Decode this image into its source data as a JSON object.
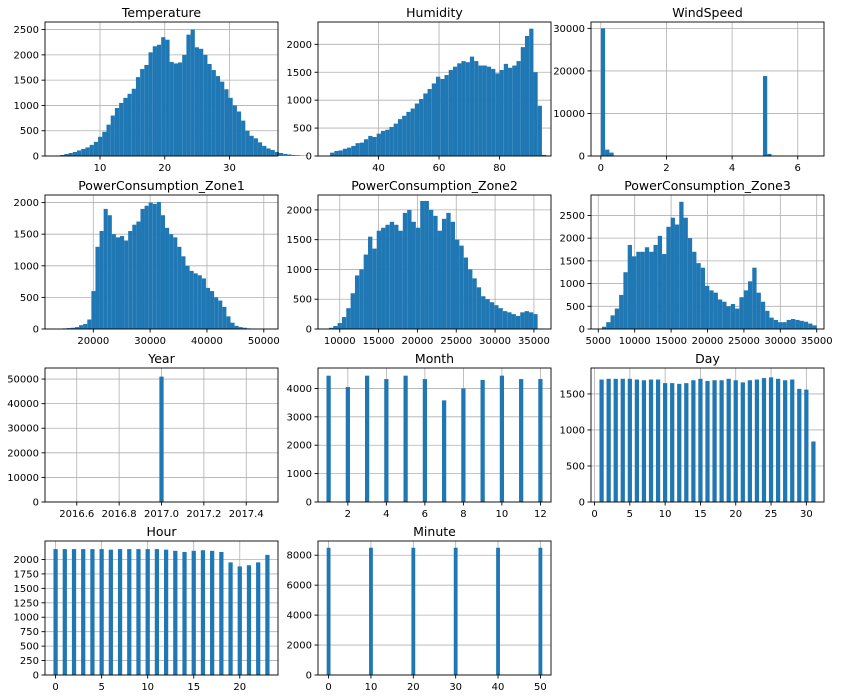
{
  "figure": {
    "background": "#ffffff",
    "bar_color": "#1f77b4",
    "grid_color": "#b0b0b0"
  },
  "chart_data": [
    {
      "type": "bar",
      "title": "Temperature",
      "xlim": [
        1.5,
        37.5
      ],
      "ylim": [
        0,
        2650
      ],
      "xticks": [
        {
          "v": 10,
          "label": "10"
        },
        {
          "v": 20,
          "label": "20"
        },
        {
          "v": 30,
          "label": "30"
        }
      ],
      "yticks": [
        {
          "v": 0,
          "label": "0"
        },
        {
          "v": 500,
          "label": "500"
        },
        {
          "v": 1000,
          "label": "1000"
        },
        {
          "v": 1500,
          "label": "1500"
        },
        {
          "v": 2000,
          "label": "2000"
        },
        {
          "v": 2500,
          "label": "2500"
        }
      ],
      "bins": {
        "start": 3.2,
        "width": 0.65
      },
      "counts": [
        10,
        20,
        40,
        60,
        80,
        110,
        140,
        170,
        220,
        280,
        380,
        480,
        620,
        800,
        950,
        1050,
        1150,
        1230,
        1330,
        1560,
        1720,
        1800,
        2050,
        2170,
        2200,
        2350,
        2300,
        1860,
        1830,
        1850,
        2000,
        2400,
        2500,
        2150,
        2120,
        2000,
        1820,
        1700,
        1580,
        1470,
        1320,
        1150,
        1000,
        880,
        700,
        500,
        400,
        350,
        270,
        200,
        150,
        120,
        80,
        60,
        40,
        30,
        20,
        15,
        10,
        8
      ]
    },
    {
      "type": "bar",
      "title": "Humidity",
      "xlim": [
        20,
        97
      ],
      "ylim": [
        0,
        2400
      ],
      "xticks": [
        {
          "v": 40,
          "label": "40"
        },
        {
          "v": 60,
          "label": "60"
        },
        {
          "v": 80,
          "label": "80"
        }
      ],
      "yticks": [
        {
          "v": 0,
          "label": "0"
        },
        {
          "v": 500,
          "label": "500"
        },
        {
          "v": 1000,
          "label": "1000"
        },
        {
          "v": 1500,
          "label": "1500"
        },
        {
          "v": 2000,
          "label": "2000"
        }
      ],
      "bins": {
        "start": 24,
        "width": 1.4
      },
      "counts": [
        60,
        90,
        100,
        130,
        150,
        180,
        230,
        240,
        300,
        360,
        340,
        400,
        450,
        470,
        520,
        580,
        660,
        720,
        790,
        850,
        940,
        1020,
        1120,
        1200,
        1300,
        1420,
        1380,
        1450,
        1540,
        1600,
        1660,
        1700,
        1680,
        1780,
        1700,
        1620,
        1620,
        1600,
        1560,
        1480,
        1540,
        1650,
        1580,
        1620,
        1700,
        1950,
        2150,
        2280,
        1500,
        900,
        20
      ]
    },
    {
      "type": "bar",
      "title": "WindSpeed",
      "xlim": [
        -0.3,
        6.8
      ],
      "ylim": [
        0,
        31500
      ],
      "xticks": [
        {
          "v": 0,
          "label": "0"
        },
        {
          "v": 2,
          "label": "2"
        },
        {
          "v": 4,
          "label": "4"
        },
        {
          "v": 6,
          "label": "6"
        }
      ],
      "yticks": [
        {
          "v": 0,
          "label": "0"
        },
        {
          "v": 10000,
          "label": "10000"
        },
        {
          "v": 20000,
          "label": "20000"
        },
        {
          "v": 30000,
          "label": "30000"
        }
      ],
      "bins": {
        "start": 0.0,
        "width": 0.13
      },
      "counts": [
        30000,
        1500,
        800,
        100,
        0,
        0,
        0,
        0,
        0,
        0,
        0,
        0,
        0,
        0,
        0,
        0,
        0,
        0,
        0,
        0,
        0,
        0,
        0,
        0,
        0,
        0,
        0,
        0,
        0,
        0,
        0,
        0,
        0,
        0,
        0,
        0,
        0,
        0,
        18800,
        500,
        100,
        50,
        0,
        0,
        0,
        0,
        0,
        0,
        0,
        20
      ]
    },
    {
      "type": "bar",
      "title": "PowerConsumption_Zone1",
      "xlim": [
        11500,
        52500
      ],
      "ylim": [
        0,
        2120
      ],
      "xticks": [
        {
          "v": 20000,
          "label": "20000"
        },
        {
          "v": 30000,
          "label": "30000"
        },
        {
          "v": 40000,
          "label": "40000"
        },
        {
          "v": 50000,
          "label": "50000"
        }
      ],
      "yticks": [
        {
          "v": 0,
          "label": "0"
        },
        {
          "v": 500,
          "label": "500"
        },
        {
          "v": 1000,
          "label": "1000"
        },
        {
          "v": 1500,
          "label": "1500"
        },
        {
          "v": 2000,
          "label": "2000"
        }
      ],
      "bins": {
        "start": 13900,
        "width": 720
      },
      "counts": [
        5,
        10,
        15,
        20,
        30,
        60,
        80,
        150,
        600,
        1300,
        1550,
        1900,
        1800,
        1500,
        1450,
        1470,
        1400,
        1550,
        1650,
        1700,
        1900,
        1950,
        2000,
        1980,
        2010,
        1800,
        1600,
        1500,
        1450,
        1300,
        1150,
        1000,
        920,
        880,
        850,
        800,
        650,
        600,
        500,
        450,
        350,
        200,
        100,
        50,
        30,
        20,
        10,
        5,
        0,
        0
      ]
    },
    {
      "type": "bar",
      "title": "PowerConsumption_Zone2",
      "xlim": [
        7200,
        37200
      ],
      "ylim": [
        0,
        2250
      ],
      "xticks": [
        {
          "v": 10000,
          "label": "10000"
        },
        {
          "v": 15000,
          "label": "15000"
        },
        {
          "v": 20000,
          "label": "20000"
        },
        {
          "v": 25000,
          "label": "25000"
        },
        {
          "v": 30000,
          "label": "30000"
        },
        {
          "v": 35000,
          "label": "35000"
        }
      ],
      "yticks": [
        {
          "v": 0,
          "label": "0"
        },
        {
          "v": 500,
          "label": "500"
        },
        {
          "v": 1000,
          "label": "1000"
        },
        {
          "v": 1500,
          "label": "1500"
        },
        {
          "v": 2000,
          "label": "2000"
        }
      ],
      "bins": {
        "start": 8600,
        "width": 560
      },
      "counts": [
        20,
        50,
        100,
        200,
        350,
        600,
        900,
        1000,
        1250,
        1550,
        1350,
        1650,
        1700,
        1750,
        1800,
        1750,
        1650,
        1950,
        2000,
        1800,
        1700,
        2150,
        2150,
        2000,
        1900,
        1650,
        1850,
        1950,
        1800,
        1500,
        1400,
        1200,
        1000,
        850,
        700,
        550,
        500,
        450,
        400,
        350,
        300,
        280,
        250,
        220,
        280,
        300,
        280,
        250,
        5,
        0
      ]
    },
    {
      "type": "bar",
      "title": "PowerConsumption_Zone3",
      "xlim": [
        4000,
        36000
      ],
      "ylim": [
        0,
        2950
      ],
      "xticks": [
        {
          "v": 5000,
          "label": "5000"
        },
        {
          "v": 10000,
          "label": "10000"
        },
        {
          "v": 15000,
          "label": "15000"
        },
        {
          "v": 20000,
          "label": "20000"
        },
        {
          "v": 25000,
          "label": "25000"
        },
        {
          "v": 30000,
          "label": "30000"
        },
        {
          "v": 35000,
          "label": "35000"
        }
      ],
      "yticks": [
        {
          "v": 0,
          "label": "0"
        },
        {
          "v": 500,
          "label": "500"
        },
        {
          "v": 1000,
          "label": "1000"
        },
        {
          "v": 1500,
          "label": "1500"
        },
        {
          "v": 2000,
          "label": "2000"
        },
        {
          "v": 2500,
          "label": "2500"
        }
      ],
      "bins": {
        "start": 5500,
        "width": 590
      },
      "counts": [
        50,
        150,
        300,
        450,
        750,
        1250,
        1850,
        1600,
        1700,
        1700,
        1800,
        1700,
        1850,
        2050,
        1650,
        2250,
        2450,
        2300,
        2800,
        2450,
        2000,
        1700,
        1450,
        1350,
        950,
        850,
        800,
        650,
        600,
        500,
        550,
        450,
        700,
        850,
        1050,
        1350,
        800,
        600,
        400,
        250,
        200,
        150,
        150,
        200,
        220,
        200,
        180,
        160,
        120,
        80
      ]
    },
    {
      "type": "bar",
      "title": "Year",
      "xlim": [
        2016.45,
        2017.55
      ],
      "ylim": [
        0,
        54500
      ],
      "xticks": [
        {
          "v": 2016.6,
          "label": "2016.6"
        },
        {
          "v": 2016.8,
          "label": "2016.8"
        },
        {
          "v": 2017.0,
          "label": "2017.0"
        },
        {
          "v": 2017.2,
          "label": "2017.2"
        },
        {
          "v": 2017.4,
          "label": "2017.4"
        }
      ],
      "yticks": [
        {
          "v": 0,
          "label": "0"
        },
        {
          "v": 10000,
          "label": "10000"
        },
        {
          "v": 20000,
          "label": "20000"
        },
        {
          "v": 30000,
          "label": "30000"
        },
        {
          "v": 40000,
          "label": "40000"
        },
        {
          "v": 50000,
          "label": "50000"
        }
      ],
      "bins": {
        "start": 2016.99,
        "width": 0.02
      },
      "counts": [
        51000
      ]
    },
    {
      "type": "bar",
      "title": "Month",
      "xlim": [
        0.45,
        12.55
      ],
      "ylim": [
        0,
        4720
      ],
      "xticks": [
        {
          "v": 2,
          "label": "2"
        },
        {
          "v": 4,
          "label": "4"
        },
        {
          "v": 6,
          "label": "6"
        },
        {
          "v": 8,
          "label": "8"
        },
        {
          "v": 10,
          "label": "10"
        },
        {
          "v": 12,
          "label": "12"
        }
      ],
      "yticks": [
        {
          "v": 0,
          "label": "0"
        },
        {
          "v": 1000,
          "label": "1000"
        },
        {
          "v": 2000,
          "label": "2000"
        },
        {
          "v": 3000,
          "label": "3000"
        },
        {
          "v": 4000,
          "label": "4000"
        }
      ],
      "bins": {
        "centers": [
          1,
          2,
          3,
          4,
          5,
          6,
          7,
          8,
          9,
          10,
          11,
          12
        ],
        "width": 0.22
      },
      "counts": [
        4450,
        4050,
        4450,
        4330,
        4450,
        4330,
        3580,
        4000,
        4300,
        4450,
        4330,
        4330
      ]
    },
    {
      "type": "bar",
      "title": "Day",
      "xlim": [
        -0.5,
        32.5
      ],
      "ylim": [
        0,
        1860
      ],
      "xticks": [
        {
          "v": 0,
          "label": "0"
        },
        {
          "v": 5,
          "label": "5"
        },
        {
          "v": 10,
          "label": "10"
        },
        {
          "v": 15,
          "label": "15"
        },
        {
          "v": 20,
          "label": "20"
        },
        {
          "v": 25,
          "label": "25"
        },
        {
          "v": 30,
          "label": "30"
        }
      ],
      "yticks": [
        {
          "v": 0,
          "label": "0"
        },
        {
          "v": 500,
          "label": "500"
        },
        {
          "v": 1000,
          "label": "1000"
        },
        {
          "v": 1500,
          "label": "1500"
        }
      ],
      "bins": {
        "centers": [
          1,
          2,
          3,
          4,
          5,
          6,
          7,
          8,
          9,
          10,
          11,
          12,
          13,
          14,
          15,
          16,
          17,
          18,
          19,
          20,
          21,
          22,
          23,
          24,
          25,
          26,
          27,
          28,
          29,
          30,
          31
        ],
        "width": 0.6
      },
      "counts": [
        1700,
        1710,
        1710,
        1710,
        1710,
        1700,
        1690,
        1700,
        1700,
        1650,
        1650,
        1640,
        1650,
        1690,
        1710,
        1680,
        1690,
        1690,
        1710,
        1690,
        1660,
        1690,
        1700,
        1720,
        1730,
        1710,
        1690,
        1700,
        1570,
        1560,
        840
      ]
    },
    {
      "type": "bar",
      "title": "Hour",
      "xlim": [
        -1.15,
        24.15
      ],
      "ylim": [
        0,
        2320
      ],
      "xticks": [
        {
          "v": 0,
          "label": "0"
        },
        {
          "v": 5,
          "label": "5"
        },
        {
          "v": 10,
          "label": "10"
        },
        {
          "v": 15,
          "label": "15"
        },
        {
          "v": 20,
          "label": "20"
        }
      ],
      "yticks": [
        {
          "v": 0,
          "label": "0"
        },
        {
          "v": 250,
          "label": "250"
        },
        {
          "v": 500,
          "label": "500"
        },
        {
          "v": 750,
          "label": "750"
        },
        {
          "v": 1000,
          "label": "1000"
        },
        {
          "v": 1250,
          "label": "1250"
        },
        {
          "v": 1500,
          "label": "1500"
        },
        {
          "v": 1750,
          "label": "1750"
        },
        {
          "v": 2000,
          "label": "2000"
        }
      ],
      "bins": {
        "centers": [
          0,
          1,
          2,
          3,
          4,
          5,
          6,
          7,
          8,
          9,
          10,
          11,
          12,
          13,
          14,
          15,
          16,
          17,
          18,
          19,
          20,
          21,
          22,
          23
        ],
        "width": 0.46
      },
      "counts": [
        2180,
        2180,
        2180,
        2180,
        2180,
        2180,
        2170,
        2180,
        2180,
        2180,
        2180,
        2180,
        2170,
        2150,
        2130,
        2150,
        2160,
        2150,
        2130,
        1950,
        1880,
        1900,
        1950,
        2080
      ]
    },
    {
      "type": "bar",
      "title": "Minute",
      "xlim": [
        -2.5,
        52.5
      ],
      "ylim": [
        0,
        8950
      ],
      "xticks": [
        {
          "v": 0,
          "label": "0"
        },
        {
          "v": 10,
          "label": "10"
        },
        {
          "v": 20,
          "label": "20"
        },
        {
          "v": 30,
          "label": "30"
        },
        {
          "v": 40,
          "label": "40"
        },
        {
          "v": 50,
          "label": "50"
        }
      ],
      "yticks": [
        {
          "v": 0,
          "label": "0"
        },
        {
          "v": 2000,
          "label": "2000"
        },
        {
          "v": 4000,
          "label": "4000"
        },
        {
          "v": 6000,
          "label": "6000"
        },
        {
          "v": 8000,
          "label": "8000"
        }
      ],
      "bins": {
        "centers": [
          0,
          10,
          20,
          30,
          40,
          50
        ],
        "width": 0.9
      },
      "counts": [
        8500,
        8500,
        8500,
        8500,
        8500,
        8500
      ]
    }
  ]
}
